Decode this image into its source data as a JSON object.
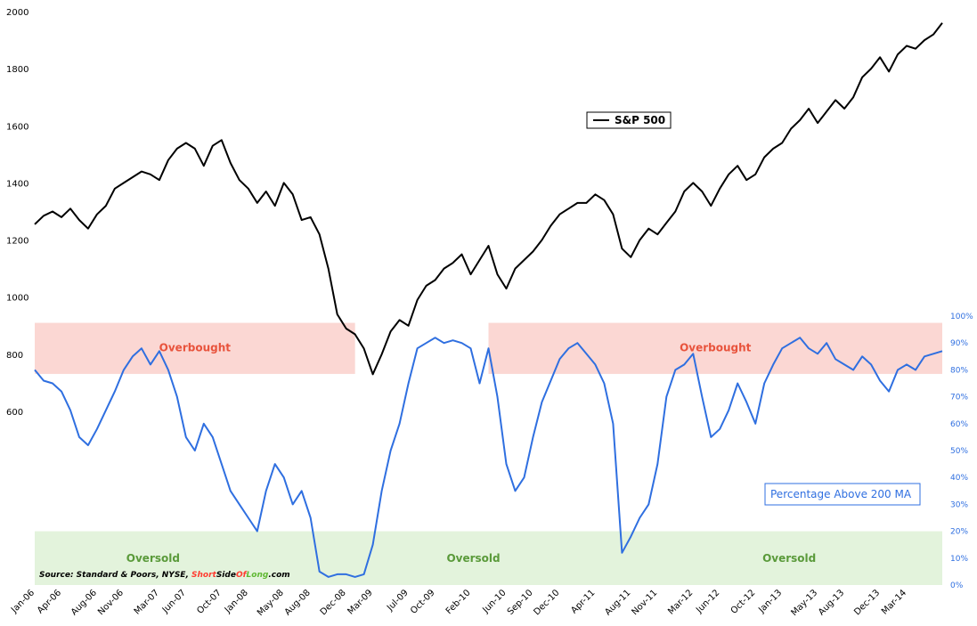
{
  "chart_data": {
    "type": "line",
    "source": {
      "prefix": "Source: Standard & Poors, NYSE, ",
      "brand_short": "Short",
      "brand_side": "Side",
      "brand_of": "Of",
      "brand_long": "Long",
      "brand_suffix": ".com"
    },
    "left_axis": {
      "min": 600,
      "max": 2000,
      "ticks": [
        "2000",
        "1800",
        "1600",
        "1400",
        "1200",
        "1000",
        "800",
        "600"
      ],
      "tick_values": [
        2000,
        1800,
        1600,
        1400,
        1200,
        1000,
        800,
        600
      ]
    },
    "right_axis": {
      "min": 0,
      "max": 100,
      "ticks": [
        "100%",
        "90%",
        "80%",
        "70%",
        "60%",
        "50%",
        "40%",
        "30%",
        "20%",
        "10%",
        "0%"
      ],
      "tick_values": [
        100,
        90,
        80,
        70,
        60,
        50,
        40,
        30,
        20,
        10,
        0
      ]
    },
    "x_ticks": [
      "Jan-06",
      "Apr-06",
      "Aug-06",
      "Nov-06",
      "Mar-07",
      "Jun-07",
      "Oct-07",
      "Jan-08",
      "May-08",
      "Aug-08",
      "Dec-08",
      "Mar-09",
      "Jul-09",
      "Oct-09",
      "Feb-10",
      "Jun-10",
      "Sep-10",
      "Dec-10",
      "Apr-11",
      "Aug-11",
      "Nov-11",
      "Mar-12",
      "Jun-12",
      "Oct-12",
      "Jan-13",
      "May-13",
      "Aug-13",
      "Dec-13",
      "Mar-14"
    ],
    "x_tick_months": [
      0,
      3,
      7,
      10,
      14,
      17,
      21,
      24,
      28,
      31,
      35,
      38,
      42,
      45,
      49,
      53,
      56,
      59,
      63,
      67,
      70,
      74,
      77,
      81,
      84,
      88,
      91,
      95,
      98
    ],
    "x_range_months": [
      0,
      102
    ],
    "zones": [
      {
        "label": "Overbought",
        "type": "overbought",
        "range_pct": [
          78.5,
          97.5
        ],
        "months": [
          0,
          36
        ]
      },
      {
        "label": "Overbought",
        "type": "overbought",
        "range_pct": [
          78.5,
          97.5
        ],
        "months": [
          51,
          120
        ]
      },
      {
        "label": "Oversold",
        "type": "oversold",
        "range_pct": [
          0,
          20
        ],
        "months": [
          0,
          120
        ]
      }
    ],
    "oversold_labels": [
      "Oversold",
      "Oversold",
      "Oversold"
    ],
    "colors": {
      "spx": "#000000",
      "breadth": "#2f6fe0",
      "overbought": "#fbd7d3",
      "oversold": "#e3f3dc",
      "right_axis": "#2f6fe0",
      "brand_short": "#ff3b2f",
      "brand_long": "#5fb832"
    },
    "legend": {
      "spx_label": "S&P 500",
      "breadth_label": "Percentage Above 200 MA"
    },
    "series": [
      {
        "name": "S&P 500",
        "axis": "left",
        "points": [
          [
            0,
            1255
          ],
          [
            1,
            1285
          ],
          [
            2,
            1300
          ],
          [
            3,
            1280
          ],
          [
            4,
            1310
          ],
          [
            5,
            1270
          ],
          [
            6,
            1240
          ],
          [
            7,
            1290
          ],
          [
            8,
            1320
          ],
          [
            9,
            1380
          ],
          [
            10,
            1400
          ],
          [
            11,
            1420
          ],
          [
            12,
            1440
          ],
          [
            13,
            1430
          ],
          [
            14,
            1410
          ],
          [
            15,
            1480
          ],
          [
            16,
            1520
          ],
          [
            17,
            1540
          ],
          [
            18,
            1520
          ],
          [
            19,
            1460
          ],
          [
            20,
            1530
          ],
          [
            21,
            1550
          ],
          [
            22,
            1470
          ],
          [
            23,
            1410
          ],
          [
            24,
            1380
          ],
          [
            25,
            1330
          ],
          [
            26,
            1370
          ],
          [
            27,
            1320
          ],
          [
            28,
            1400
          ],
          [
            29,
            1360
          ],
          [
            30,
            1270
          ],
          [
            31,
            1280
          ],
          [
            32,
            1220
          ],
          [
            33,
            1100
          ],
          [
            34,
            940
          ],
          [
            35,
            890
          ],
          [
            36,
            870
          ],
          [
            37,
            820
          ],
          [
            38,
            730
          ],
          [
            39,
            800
          ],
          [
            40,
            880
          ],
          [
            41,
            920
          ],
          [
            42,
            900
          ],
          [
            43,
            990
          ],
          [
            44,
            1040
          ],
          [
            45,
            1060
          ],
          [
            46,
            1100
          ],
          [
            47,
            1120
          ],
          [
            48,
            1150
          ],
          [
            49,
            1080
          ],
          [
            50,
            1130
          ],
          [
            51,
            1180
          ],
          [
            52,
            1080
          ],
          [
            53,
            1030
          ],
          [
            54,
            1100
          ],
          [
            55,
            1130
          ],
          [
            56,
            1160
          ],
          [
            57,
            1200
          ],
          [
            58,
            1250
          ],
          [
            59,
            1290
          ],
          [
            60,
            1310
          ],
          [
            61,
            1330
          ],
          [
            62,
            1330
          ],
          [
            63,
            1360
          ],
          [
            64,
            1340
          ],
          [
            65,
            1290
          ],
          [
            66,
            1170
          ],
          [
            67,
            1140
          ],
          [
            68,
            1200
          ],
          [
            69,
            1240
          ],
          [
            70,
            1220
          ],
          [
            71,
            1260
          ],
          [
            72,
            1300
          ],
          [
            73,
            1370
          ],
          [
            74,
            1400
          ],
          [
            75,
            1370
          ],
          [
            76,
            1320
          ],
          [
            77,
            1380
          ],
          [
            78,
            1430
          ],
          [
            79,
            1460
          ],
          [
            80,
            1410
          ],
          [
            81,
            1430
          ],
          [
            82,
            1490
          ],
          [
            83,
            1520
          ],
          [
            84,
            1540
          ],
          [
            85,
            1590
          ],
          [
            86,
            1620
          ],
          [
            87,
            1660
          ],
          [
            88,
            1610
          ],
          [
            89,
            1650
          ],
          [
            90,
            1690
          ],
          [
            91,
            1660
          ],
          [
            92,
            1700
          ],
          [
            93,
            1770
          ],
          [
            94,
            1800
          ],
          [
            95,
            1840
          ],
          [
            96,
            1790
          ],
          [
            97,
            1850
          ],
          [
            98,
            1880
          ],
          [
            99,
            1870
          ],
          [
            100,
            1900
          ],
          [
            101,
            1920
          ],
          [
            102,
            1960
          ]
        ]
      },
      {
        "name": "Percentage Above 200 MA",
        "axis": "right",
        "points": [
          [
            0,
            80
          ],
          [
            1,
            76
          ],
          [
            2,
            75
          ],
          [
            3,
            72
          ],
          [
            4,
            65
          ],
          [
            5,
            55
          ],
          [
            6,
            52
          ],
          [
            7,
            58
          ],
          [
            8,
            65
          ],
          [
            9,
            72
          ],
          [
            10,
            80
          ],
          [
            11,
            85
          ],
          [
            12,
            88
          ],
          [
            13,
            82
          ],
          [
            14,
            87
          ],
          [
            15,
            80
          ],
          [
            16,
            70
          ],
          [
            17,
            55
          ],
          [
            18,
            50
          ],
          [
            19,
            60
          ],
          [
            20,
            55
          ],
          [
            21,
            45
          ],
          [
            22,
            35
          ],
          [
            23,
            30
          ],
          [
            24,
            25
          ],
          [
            25,
            20
          ],
          [
            26,
            35
          ],
          [
            27,
            45
          ],
          [
            28,
            40
          ],
          [
            29,
            30
          ],
          [
            30,
            35
          ],
          [
            31,
            25
          ],
          [
            32,
            5
          ],
          [
            33,
            3
          ],
          [
            34,
            4
          ],
          [
            35,
            4
          ],
          [
            36,
            3
          ],
          [
            37,
            4
          ],
          [
            38,
            15
          ],
          [
            39,
            35
          ],
          [
            40,
            50
          ],
          [
            41,
            60
          ],
          [
            42,
            75
          ],
          [
            43,
            88
          ],
          [
            44,
            90
          ],
          [
            45,
            92
          ],
          [
            46,
            90
          ],
          [
            47,
            91
          ],
          [
            48,
            90
          ],
          [
            49,
            88
          ],
          [
            50,
            75
          ],
          [
            51,
            88
          ],
          [
            52,
            70
          ],
          [
            53,
            45
          ],
          [
            54,
            35
          ],
          [
            55,
            40
          ],
          [
            56,
            55
          ],
          [
            57,
            68
          ],
          [
            58,
            76
          ],
          [
            59,
            84
          ],
          [
            60,
            88
          ],
          [
            61,
            90
          ],
          [
            62,
            86
          ],
          [
            63,
            82
          ],
          [
            64,
            75
          ],
          [
            65,
            60
          ],
          [
            66,
            12
          ],
          [
            67,
            18
          ],
          [
            68,
            25
          ],
          [
            69,
            30
          ],
          [
            70,
            45
          ],
          [
            71,
            70
          ],
          [
            72,
            80
          ],
          [
            73,
            82
          ],
          [
            74,
            86
          ],
          [
            75,
            70
          ],
          [
            76,
            55
          ],
          [
            77,
            58
          ],
          [
            78,
            65
          ],
          [
            79,
            75
          ],
          [
            80,
            68
          ],
          [
            81,
            60
          ],
          [
            82,
            75
          ],
          [
            83,
            82
          ],
          [
            84,
            88
          ],
          [
            85,
            90
          ],
          [
            86,
            92
          ],
          [
            87,
            88
          ],
          [
            88,
            86
          ],
          [
            89,
            90
          ],
          [
            90,
            84
          ],
          [
            91,
            82
          ],
          [
            92,
            80
          ],
          [
            93,
            85
          ],
          [
            94,
            82
          ],
          [
            95,
            76
          ],
          [
            96,
            72
          ],
          [
            97,
            80
          ],
          [
            98,
            82
          ],
          [
            99,
            80
          ],
          [
            100,
            85
          ],
          [
            101,
            86
          ],
          [
            102,
            87
          ]
        ]
      }
    ]
  }
}
